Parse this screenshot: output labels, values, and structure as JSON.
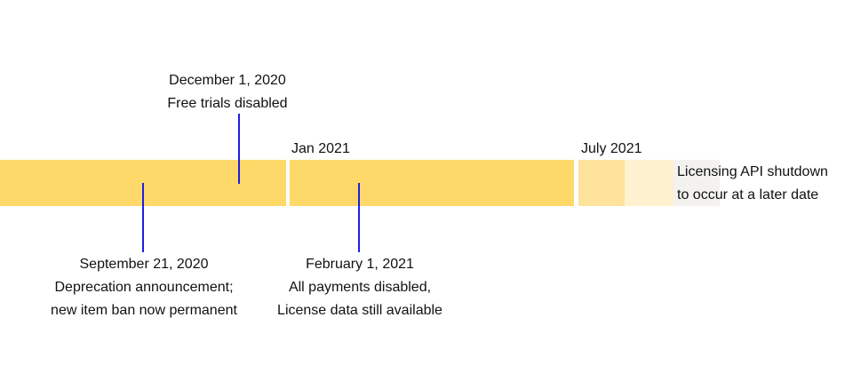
{
  "colors": {
    "solid_segment": "#fdd96a",
    "faded_segment_1": "#fde39b",
    "faded_segment_2": "#fef1cf",
    "faded_segment_3": "#f3f2ee",
    "marker_line": "#1f1fe0",
    "text": "#111111"
  },
  "ticks": {
    "jan": "Jan 2021",
    "jul": "July 2021"
  },
  "events": {
    "december": {
      "date": "December 1, 2020",
      "lines": [
        "Free trials disabled"
      ]
    },
    "september": {
      "date": "September 21, 2020",
      "lines": [
        "Deprecation announcement;",
        "new item ban now permanent"
      ]
    },
    "february": {
      "date": "February 1, 2021",
      "lines": [
        "All payments disabled,",
        "License data still available"
      ]
    }
  },
  "note": {
    "lines": [
      "Licensing API shutdown",
      "to occur at a later date"
    ]
  }
}
